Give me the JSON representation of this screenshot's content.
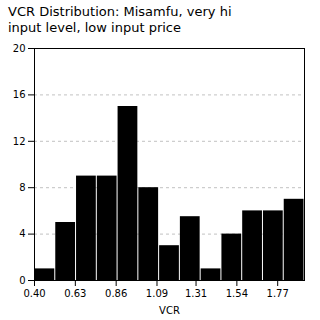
{
  "chart_data": {
    "type": "histogram",
    "title": "VCR Distribution: Misamfu, very hi\ninput level, low input price",
    "xlabel": "VCR",
    "bins": [
      0.4,
      0.517,
      0.634,
      0.751,
      0.868,
      0.985,
      1.102,
      1.219,
      1.336,
      1.453,
      1.57,
      1.687,
      1.804,
      1.921
    ],
    "values": [
      1,
      5,
      9,
      9,
      15,
      8,
      3,
      5.5,
      1,
      4,
      6,
      6,
      7
    ],
    "color": "#000000",
    "xlim": [
      0.4,
      1.921
    ],
    "xticks": [
      {
        "value": 0.4,
        "label": "0.40"
      },
      0.63,
      0.86,
      1.09,
      1.31,
      1.54,
      1.77
    ],
    "ylim": [
      0,
      20
    ],
    "yticks": [
      0,
      4,
      8,
      12,
      16,
      20
    ],
    "grid": true
  }
}
